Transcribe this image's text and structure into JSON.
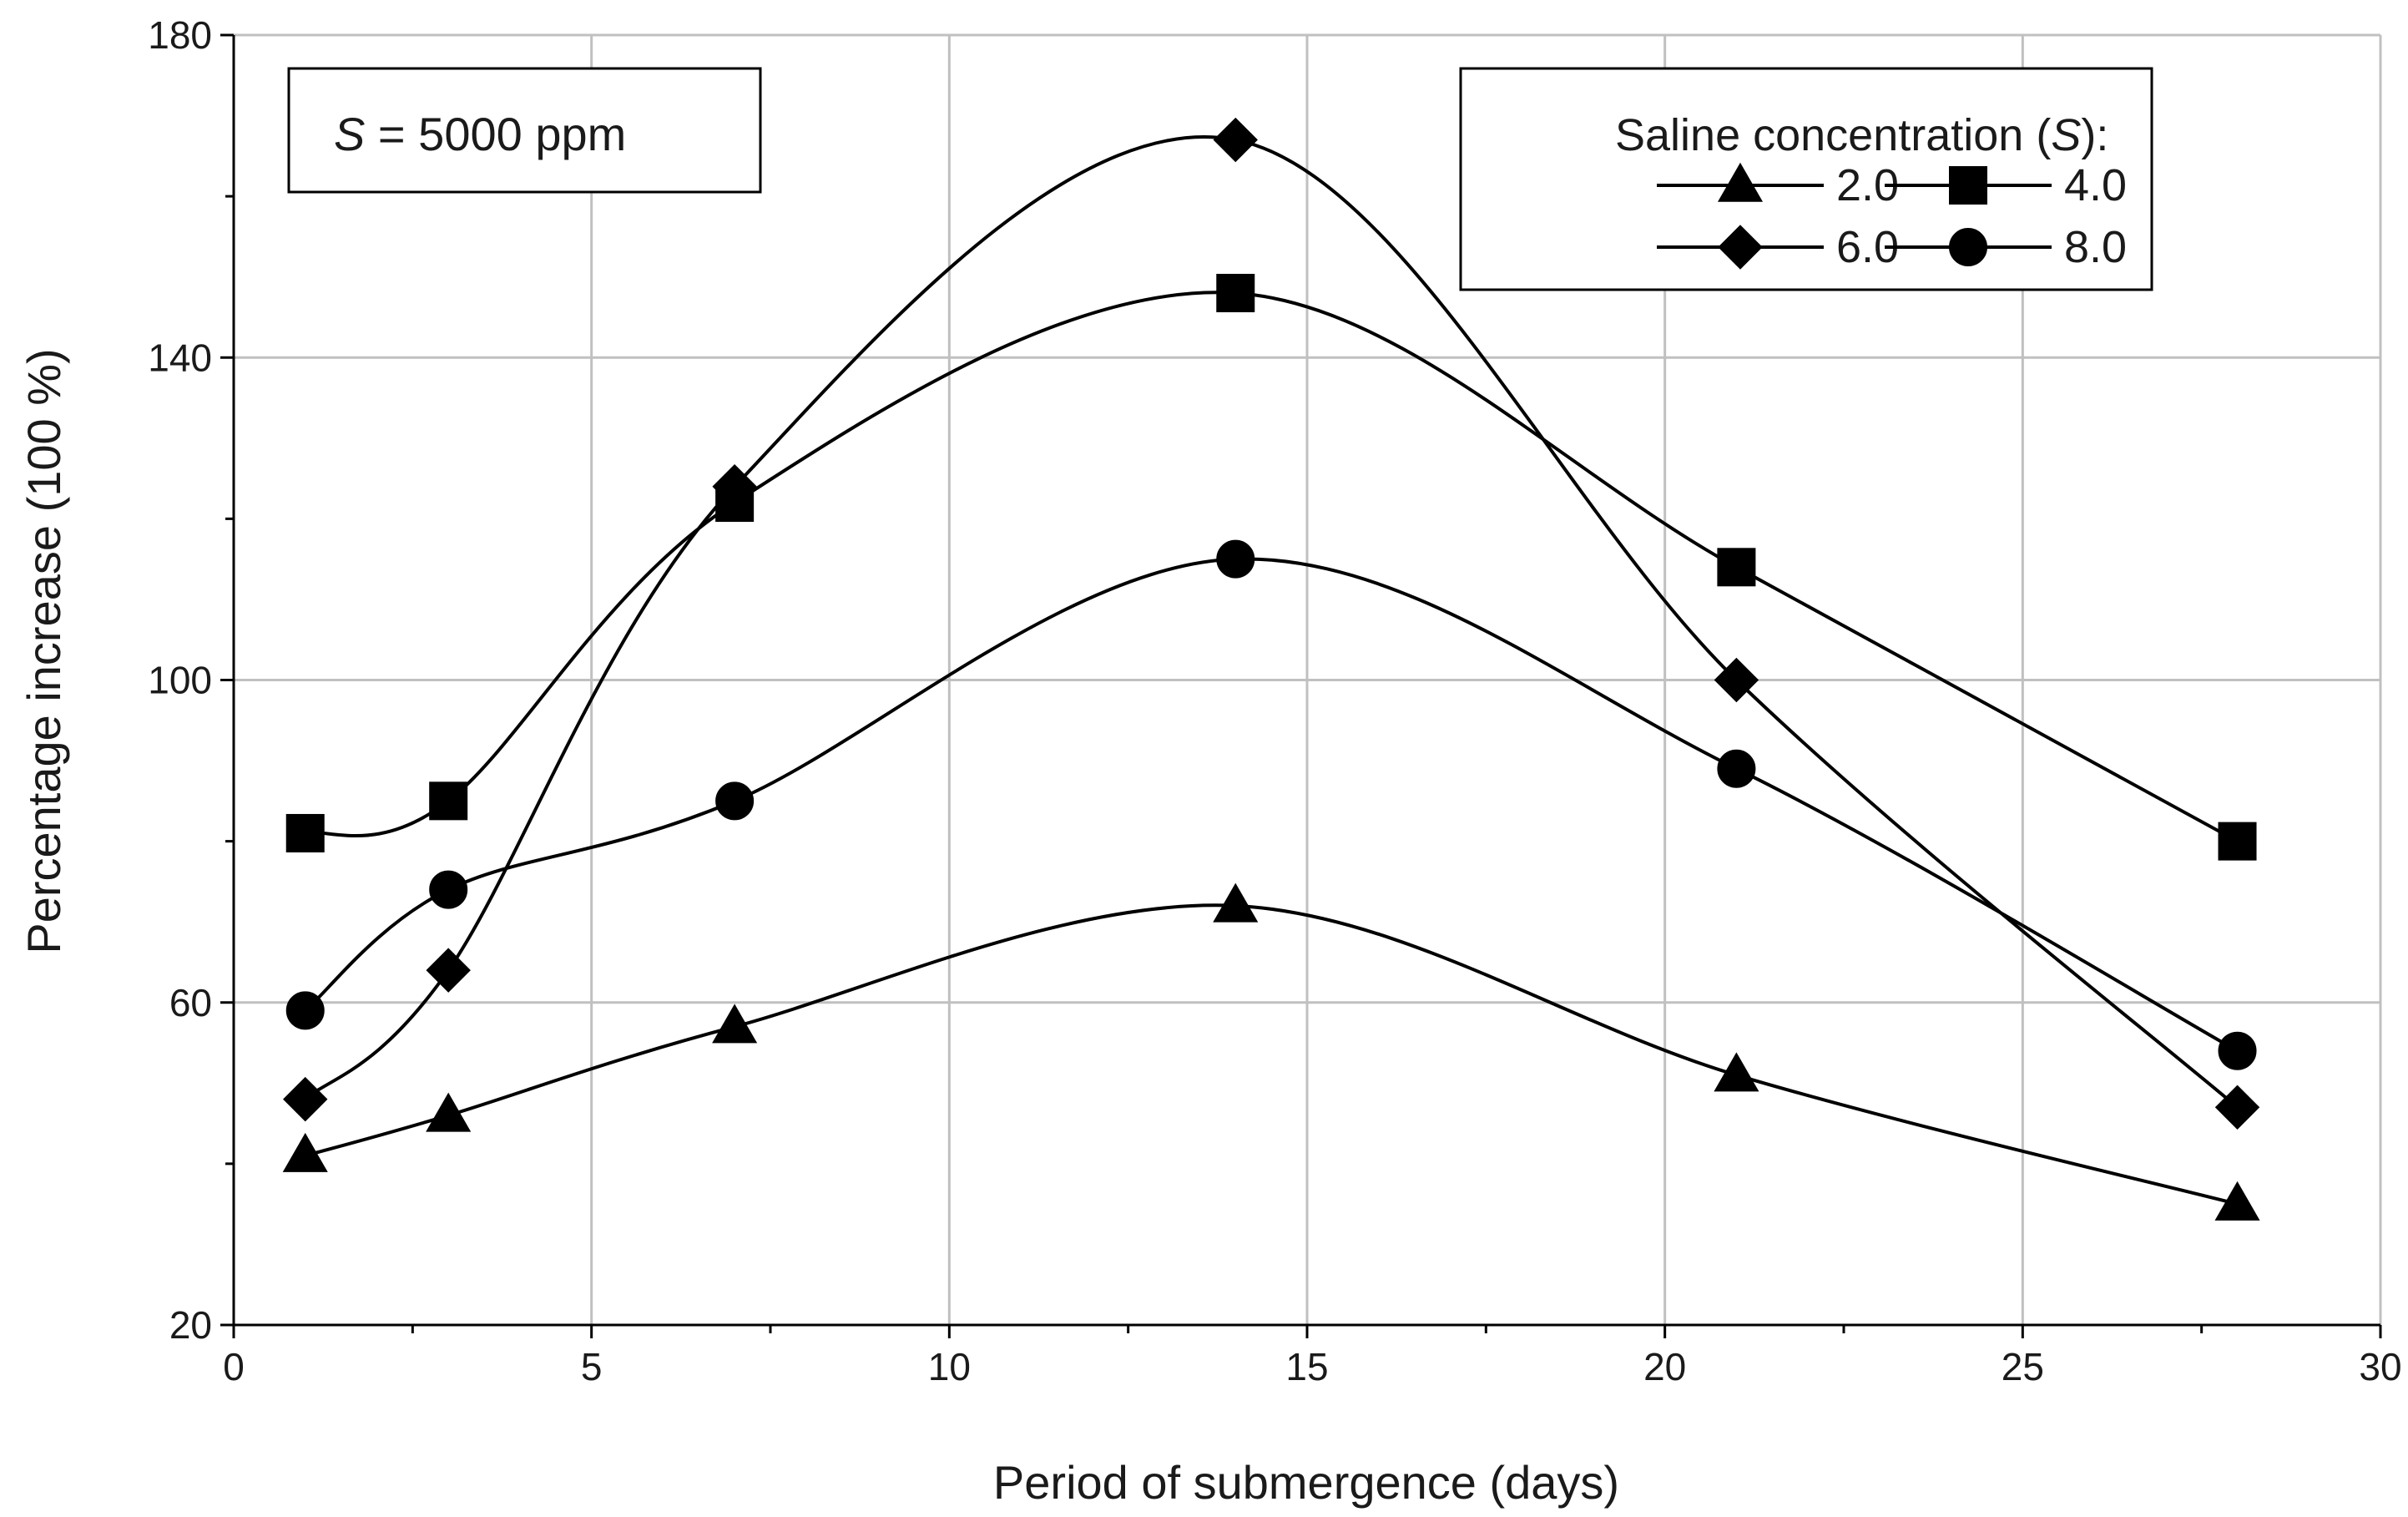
{
  "chart_data": {
    "type": "line",
    "title": "",
    "xlabel": "Period of submergence (days)",
    "ylabel": "Percentage increase (100 %)",
    "xlim": [
      0,
      30
    ],
    "ylim": [
      20,
      180
    ],
    "x_major_ticks": [
      0,
      5,
      10,
      15,
      20,
      25,
      30
    ],
    "x_tick_labels": [
      "0",
      "5",
      "10",
      "15",
      "20",
      "25",
      "30"
    ],
    "y_major_ticks": [
      20,
      60,
      100,
      140,
      180
    ],
    "y_tick_labels": [
      "20",
      "60",
      "100",
      "140",
      "180"
    ],
    "grid": true,
    "annotation": {
      "var": "S",
      "text": " = 5000 ppm"
    },
    "legend": {
      "title_prefix": "Saline concentration (",
      "title_var": "S",
      "title_suffix": "):",
      "position": "top-right"
    },
    "x": [
      1,
      3,
      7,
      14,
      21,
      28
    ],
    "series": [
      {
        "name": "2.0",
        "marker": "triangle",
        "values": [
          41,
          46,
          57,
          72,
          51,
          35
        ]
      },
      {
        "name": "4.0",
        "marker": "square",
        "values": [
          81,
          85,
          122,
          148,
          114,
          80
        ]
      },
      {
        "name": "6.0",
        "marker": "diamond",
        "values": [
          48,
          64,
          124,
          167,
          100,
          47
        ]
      },
      {
        "name": "8.0",
        "marker": "circle",
        "values": [
          59,
          74,
          85,
          115,
          89,
          54
        ]
      }
    ],
    "colors": {
      "line": "#000000",
      "grid": "#c0c0c0",
      "axis": "#000000"
    }
  }
}
